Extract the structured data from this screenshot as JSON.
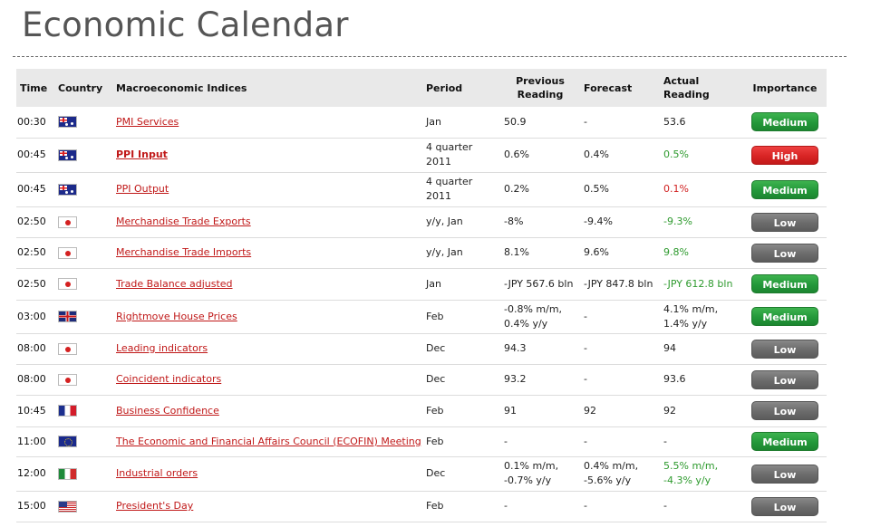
{
  "page": {
    "title": "Economic Calendar"
  },
  "table": {
    "headers": {
      "time": "Time",
      "country": "Country",
      "indices": "Macroeconomic Indices",
      "period": "Period",
      "previous": [
        "Previous",
        "Reading"
      ],
      "forecast": "Forecast",
      "actual": [
        "Actual",
        "Reading"
      ],
      "importance": "Importance"
    },
    "colors": {
      "link_red": "#c01818",
      "actual_green": "#2e9a2e",
      "actual_red": "#d01f1f",
      "medium": "#23983a",
      "high": "#d82424",
      "low": "#6b6b6b"
    },
    "rows": [
      {
        "time": "00:30",
        "flag": "au",
        "country_icon": "flag-australia-icon",
        "index": "PMI Services",
        "index_bold": false,
        "period": [
          "Jan"
        ],
        "previous": [
          "50.9"
        ],
        "forecast": [
          "-"
        ],
        "actual": [
          "53.6"
        ],
        "actual_color": "none",
        "importance": "Medium"
      },
      {
        "time": "00:45",
        "flag": "au",
        "country_icon": "flag-australia-icon",
        "index": "PPI Input",
        "index_bold": true,
        "period": [
          "4 quarter",
          "2011"
        ],
        "previous": [
          "0.6%"
        ],
        "forecast": [
          "0.4%"
        ],
        "actual": [
          "0.5%"
        ],
        "actual_color": "green",
        "importance": "High"
      },
      {
        "time": "00:45",
        "flag": "au",
        "country_icon": "flag-australia-icon",
        "index": "PPI Output",
        "index_bold": false,
        "period": [
          "4 quarter",
          "2011"
        ],
        "previous": [
          "0.2%"
        ],
        "forecast": [
          "0.5%"
        ],
        "actual": [
          "0.1%"
        ],
        "actual_color": "red",
        "importance": "Medium"
      },
      {
        "time": "02:50",
        "flag": "jp",
        "country_icon": "flag-japan-icon",
        "index": "Merchandise Trade Exports",
        "index_bold": false,
        "period": [
          "y/y, Jan"
        ],
        "previous": [
          "-8%"
        ],
        "forecast": [
          "-9.4%"
        ],
        "actual": [
          "-9.3%"
        ],
        "actual_color": "green",
        "importance": "Low"
      },
      {
        "time": "02:50",
        "flag": "jp",
        "country_icon": "flag-japan-icon",
        "index": "Merchandise Trade Imports",
        "index_bold": false,
        "period": [
          "y/y, Jan"
        ],
        "previous": [
          "8.1%"
        ],
        "forecast": [
          "9.6%"
        ],
        "actual": [
          "9.8%"
        ],
        "actual_color": "green",
        "importance": "Low"
      },
      {
        "time": "02:50",
        "flag": "jp",
        "country_icon": "flag-japan-icon",
        "index": "Trade Balance adjusted",
        "index_bold": false,
        "period": [
          "Jan"
        ],
        "previous": [
          "-JPY 567.6 bln"
        ],
        "forecast": [
          "-JPY 847.8 bln"
        ],
        "actual": [
          "-JPY 612.8 bln"
        ],
        "actual_color": "green",
        "importance": "Medium"
      },
      {
        "time": "03:00",
        "flag": "gb",
        "country_icon": "flag-uk-icon",
        "index": "Rightmove House Prices",
        "index_bold": false,
        "period": [
          "Feb"
        ],
        "previous": [
          "-0.8% m/m,",
          "0.4% y/y"
        ],
        "forecast": [
          "-"
        ],
        "actual": [
          "4.1% m/m,",
          "1.4% y/y"
        ],
        "actual_color": "none",
        "importance": "Medium"
      },
      {
        "time": "08:00",
        "flag": "jp",
        "country_icon": "flag-japan-icon",
        "index": "Leading indicators",
        "index_bold": false,
        "period": [
          "Dec"
        ],
        "previous": [
          "94.3"
        ],
        "forecast": [
          "-"
        ],
        "actual": [
          "94"
        ],
        "actual_color": "none",
        "importance": "Low"
      },
      {
        "time": "08:00",
        "flag": "jp",
        "country_icon": "flag-japan-icon",
        "index": "Coincident indicators",
        "index_bold": false,
        "period": [
          "Dec"
        ],
        "previous": [
          "93.2"
        ],
        "forecast": [
          "-"
        ],
        "actual": [
          "93.6"
        ],
        "actual_color": "none",
        "importance": "Low"
      },
      {
        "time": "10:45",
        "flag": "fr",
        "country_icon": "flag-france-icon",
        "index": "Business Confidence",
        "index_bold": false,
        "period": [
          "Feb"
        ],
        "previous": [
          "91"
        ],
        "forecast": [
          "92"
        ],
        "actual": [
          "92"
        ],
        "actual_color": "none",
        "importance": "Low"
      },
      {
        "time": "11:00",
        "flag": "eu",
        "country_icon": "flag-eu-icon",
        "index": "The Economic and Financial Affairs Council (ECOFIN) Meeting",
        "index_bold": false,
        "period": [
          "Feb"
        ],
        "previous": [
          "-"
        ],
        "forecast": [
          "-"
        ],
        "actual": [
          "-"
        ],
        "actual_color": "none",
        "importance": "Medium"
      },
      {
        "time": "12:00",
        "flag": "it",
        "country_icon": "flag-italy-icon",
        "index": "Industrial orders",
        "index_bold": false,
        "period": [
          "Dec"
        ],
        "previous": [
          "0.1% m/m,",
          "-0.7% y/y"
        ],
        "forecast": [
          "0.4% m/m,",
          "-5.6% y/y"
        ],
        "actual": [
          "5.5% m/m,",
          "-4.3% y/y"
        ],
        "actual_color": "green",
        "importance": "Low"
      },
      {
        "time": "15:00",
        "flag": "us",
        "country_icon": "flag-usa-icon",
        "index": "President's Day",
        "index_bold": false,
        "period": [
          "Feb"
        ],
        "previous": [
          "-"
        ],
        "forecast": [
          "-"
        ],
        "actual": [
          "-"
        ],
        "actual_color": "none",
        "importance": "Low"
      }
    ]
  }
}
